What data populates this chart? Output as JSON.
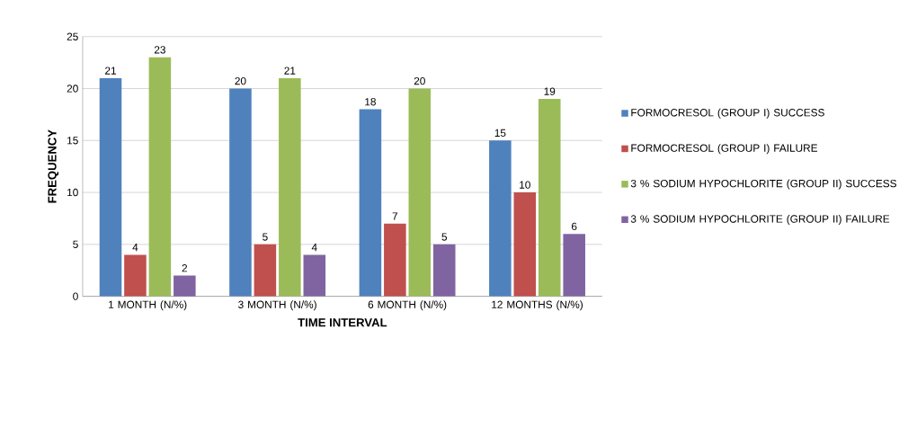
{
  "chart_data": {
    "type": "bar",
    "xlabel": "TIME INTERVAL",
    "ylabel": "FREQUENCY",
    "categories": [
      "1 MONTH (N/%)",
      "3 MONTH (N/%)",
      "6 MONTH (N/%)",
      "12 MONTHS (N/%)"
    ],
    "series": [
      {
        "name": "FORMOCRESOL (GROUP I) SUCCESS",
        "color": "#4f81bd",
        "values": [
          21,
          20,
          18,
          15
        ]
      },
      {
        "name": "FORMOCRESOL (GROUP I) FAILURE",
        "color": "#c0504d",
        "values": [
          4,
          5,
          7,
          10
        ]
      },
      {
        "name": "3 % SODIUM HYPOCHLORITE (GROUP II) SUCCESS",
        "color": "#9bbb59",
        "values": [
          23,
          21,
          20,
          19
        ]
      },
      {
        "name": "3 % SODIUM HYPOCHLORITE (GROUP II) FAILURE",
        "color": "#8064a2",
        "values": [
          2,
          4,
          5,
          6
        ]
      }
    ],
    "ylim": [
      0,
      25
    ],
    "yticks": [
      0,
      5,
      10,
      15,
      20,
      25
    ],
    "grid": "y",
    "legend": "right",
    "data_labels": true
  }
}
